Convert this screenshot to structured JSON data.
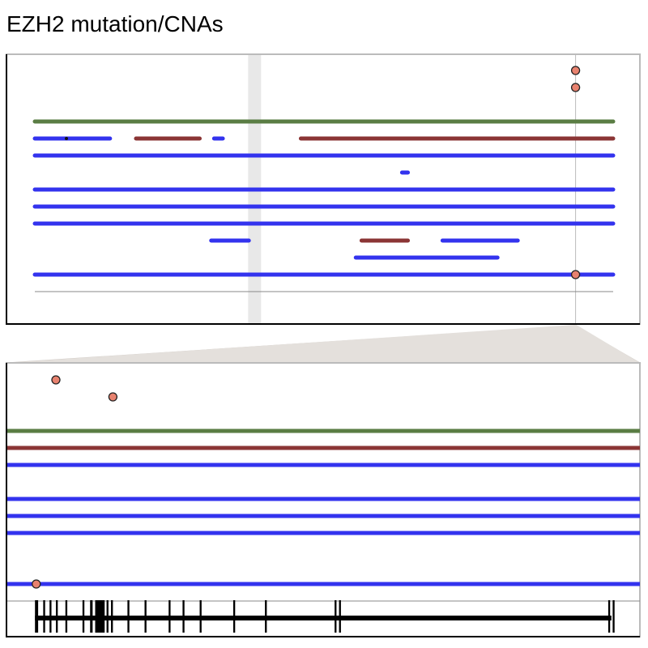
{
  "title": "EZH2 mutation/CNAs",
  "colors": {
    "amplification": "#5a7d44",
    "deletion_homozygous": "#8b3535",
    "deletion": "#3333ee",
    "mutation_fill": "#e8826f",
    "highlight_band": "#e8e8e8",
    "zoom_connector": "#e4e0dc",
    "frame": "#bbbbbb",
    "axis": "#000000",
    "baseline": "#888888",
    "exon": "#000000"
  },
  "overview": {
    "highlight_band_position": 0.38,
    "gene_position": 0.935,
    "tracks": [
      {
        "type": "amplification",
        "segments": [
          [
            0.0,
            1.0
          ]
        ]
      },
      {
        "type": "mixed",
        "segments": [
          {
            "type": "deletion",
            "range": [
              0.0,
              0.13
            ]
          },
          {
            "type": "deletion_homozygous",
            "range": [
              0.175,
              0.285
            ]
          },
          {
            "type": "deletion",
            "range": [
              0.31,
              0.325
            ]
          },
          {
            "type": "deletion_homozygous",
            "range": [
              0.46,
              1.0
            ]
          }
        ]
      },
      {
        "type": "deletion",
        "segments": [
          [
            0.0,
            1.0
          ]
        ]
      },
      {
        "type": "deletion",
        "segments": [
          [
            0.635,
            0.645
          ]
        ]
      },
      {
        "type": "deletion",
        "segments": [
          [
            0.0,
            1.0
          ]
        ]
      },
      {
        "type": "deletion",
        "segments": [
          [
            0.0,
            1.0
          ]
        ]
      },
      {
        "type": "deletion",
        "segments": [
          [
            0.0,
            1.0
          ]
        ]
      },
      {
        "type": "mixed",
        "segments": [
          {
            "type": "deletion",
            "range": [
              0.305,
              0.37
            ]
          },
          {
            "type": "deletion_homozygous",
            "range": [
              0.565,
              0.645
            ]
          },
          {
            "type": "deletion",
            "range": [
              0.705,
              0.835
            ]
          }
        ]
      },
      {
        "type": "deletion",
        "segments": [
          [
            0.555,
            0.8
          ]
        ]
      },
      {
        "type": "deletion",
        "segments": [
          [
            0.0,
            1.0
          ]
        ]
      }
    ],
    "mutations": [
      {
        "track": -3,
        "position": 0.935
      },
      {
        "track": -2,
        "position": 0.935
      },
      {
        "track": 9,
        "position": 0.935
      }
    ]
  },
  "zoom": {
    "tracks": [
      {
        "type": "amplification"
      },
      {
        "type": "deletion_homozygous"
      },
      {
        "type": "deletion"
      },
      {
        "type": "none"
      },
      {
        "type": "deletion"
      },
      {
        "type": "deletion"
      },
      {
        "type": "deletion"
      },
      {
        "type": "none"
      },
      {
        "type": "none"
      },
      {
        "type": "deletion"
      }
    ],
    "mutations": [
      {
        "track": -3,
        "position": 0.078
      },
      {
        "track": -2,
        "position": 0.168
      },
      {
        "track": 9,
        "position": 0.047
      }
    ],
    "gene_model": {
      "start": 0.045,
      "end": 0.955,
      "exons": [
        [
          0.045,
          0.05
        ],
        [
          0.058,
          0.061
        ],
        [
          0.068,
          0.071
        ],
        [
          0.078,
          0.081
        ],
        [
          0.093,
          0.096
        ],
        [
          0.12,
          0.123
        ],
        [
          0.132,
          0.136
        ],
        [
          0.14,
          0.155
        ],
        [
          0.158,
          0.161
        ],
        [
          0.165,
          0.168
        ],
        [
          0.191,
          0.194
        ],
        [
          0.218,
          0.221
        ],
        [
          0.256,
          0.259
        ],
        [
          0.278,
          0.281
        ],
        [
          0.305,
          0.308
        ],
        [
          0.358,
          0.361
        ],
        [
          0.408,
          0.411
        ],
        [
          0.518,
          0.521
        ],
        [
          0.525,
          0.528
        ],
        [
          0.95,
          0.953
        ],
        [
          0.957,
          0.96
        ]
      ]
    }
  }
}
